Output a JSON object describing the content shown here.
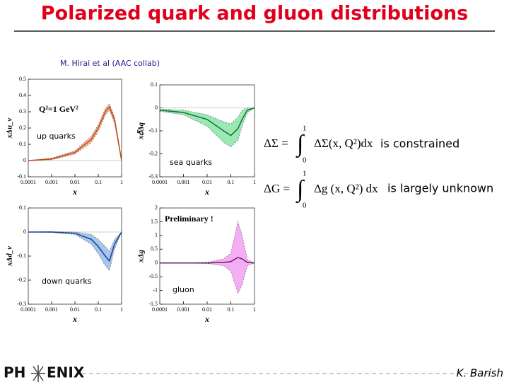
{
  "slide": {
    "title": "Polarized quark and gluon distributions",
    "citation": "M. Hirai et al (AAC collab)",
    "eq1": {
      "lhs": "ΔΣ =",
      "integrand": "ΔΣ(x, Q²)dx",
      "upper": "1",
      "lower": "0",
      "note": "is constrained"
    },
    "eq2": {
      "lhs": "ΔG =",
      "integrand": "Δg (x, Q²) dx",
      "upper": "1",
      "lower": "0",
      "note": "is largely unknown"
    },
    "logo_left": "PH",
    "logo_right": "ENIX",
    "author": "K. Barish"
  },
  "chart_data": [
    {
      "type": "line",
      "xscale": "log",
      "xlabel": "x",
      "ylabel": "xΔu_v",
      "annotation": "Q²=1 GeV²",
      "label": "up quarks",
      "x": [
        0.0001,
        0.001,
        0.01,
        0.05,
        0.1,
        0.2,
        0.3,
        0.5,
        1
      ],
      "xlim": [
        0.0001,
        1
      ],
      "xticks": [
        0.0001,
        0.001,
        0.01,
        0.1,
        1
      ],
      "ylim": [
        -0.1,
        0.5
      ],
      "yticks": [
        -0.1,
        0,
        0.1,
        0.2,
        0.3,
        0.4,
        0.5
      ],
      "series": [
        {
          "color": "#c0461a",
          "band_color": "#f3a77a",
          "values": [
            0,
            0.01,
            0.05,
            0.13,
            0.2,
            0.3,
            0.33,
            0.25,
            0
          ],
          "lower": [
            0,
            0.005,
            0.04,
            0.11,
            0.18,
            0.28,
            0.31,
            0.23,
            0
          ],
          "upper": [
            0,
            0.015,
            0.06,
            0.15,
            0.22,
            0.32,
            0.35,
            0.27,
            0
          ]
        }
      ]
    },
    {
      "type": "line",
      "xscale": "log",
      "xlabel": "x",
      "ylabel": "x𝛿Δq",
      "label": "sea quarks",
      "x": [
        0.0001,
        0.001,
        0.01,
        0.05,
        0.1,
        0.2,
        0.3,
        0.5,
        1
      ],
      "xlim": [
        0.0001,
        1
      ],
      "xticks": [
        0.0001,
        0.001,
        0.01,
        0.1,
        1
      ],
      "ylim": [
        -0.3,
        0.1
      ],
      "yticks": [
        -0.3,
        -0.2,
        -0.1,
        0,
        0.1
      ],
      "series": [
        {
          "color": "#1d6b3a",
          "band_color": "#7fe3a3",
          "values": [
            -0.01,
            -0.02,
            -0.05,
            -0.1,
            -0.12,
            -0.09,
            -0.05,
            -0.01,
            0
          ],
          "lower": [
            -0.015,
            -0.03,
            -0.08,
            -0.15,
            -0.17,
            -0.14,
            -0.08,
            -0.02,
            0
          ],
          "upper": [
            -0.005,
            -0.01,
            -0.03,
            -0.06,
            -0.07,
            -0.04,
            -0.01,
            0,
            0
          ]
        }
      ]
    },
    {
      "type": "line",
      "xscale": "log",
      "xlabel": "x",
      "ylabel": "xΔd_v",
      "label": "down quarks",
      "x": [
        0.0001,
        0.001,
        0.01,
        0.05,
        0.1,
        0.2,
        0.3,
        0.5,
        1
      ],
      "xlim": [
        0.0001,
        1
      ],
      "xticks": [
        0.0001,
        0.001,
        0.01,
        0.1,
        1
      ],
      "ylim": [
        -0.3,
        0.1
      ],
      "yticks": [
        -0.3,
        -0.2,
        -0.1,
        0,
        0.1
      ],
      "series": [
        {
          "color": "#1f3f8f",
          "band_color": "#8fb8ea",
          "values": [
            0,
            0,
            -0.005,
            -0.03,
            -0.06,
            -0.1,
            -0.12,
            -0.05,
            0
          ],
          "lower": [
            0,
            -0.002,
            -0.01,
            -0.05,
            -0.09,
            -0.14,
            -0.16,
            -0.07,
            0
          ],
          "upper": [
            0,
            0.002,
            0,
            -0.01,
            -0.03,
            -0.06,
            -0.08,
            -0.03,
            0
          ]
        }
      ]
    },
    {
      "type": "line",
      "xscale": "log",
      "xlabel": "x",
      "ylabel": "xΔg",
      "annotation": "Preliminary !",
      "label": "gluon",
      "x": [
        0.0001,
        0.001,
        0.01,
        0.05,
        0.1,
        0.2,
        0.3,
        0.5,
        1
      ],
      "xlim": [
        0.0001,
        1
      ],
      "xticks": [
        0.0001,
        0.001,
        0.01,
        0.1,
        1
      ],
      "ylim": [
        -1.5,
        2
      ],
      "yticks": [
        -1.5,
        -1,
        -0.5,
        0,
        0.5,
        1,
        1.5,
        2
      ],
      "series": [
        {
          "color": "#6b1a6b",
          "band_color": "#f39af0",
          "values": [
            0,
            0,
            0,
            0.02,
            0.05,
            0.2,
            0.15,
            0.02,
            0
          ],
          "lower": [
            0,
            0,
            -0.02,
            -0.1,
            -0.3,
            -1.1,
            -0.8,
            -0.1,
            0
          ],
          "upper": [
            0,
            0,
            0.02,
            0.15,
            0.35,
            1.5,
            1.0,
            0.12,
            0
          ]
        }
      ]
    }
  ]
}
